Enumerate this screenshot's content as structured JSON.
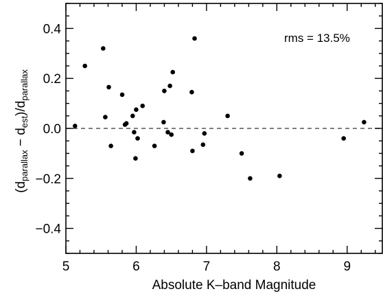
{
  "chart_data": {
    "type": "scatter",
    "title": "",
    "xlabel": "Absolute K–band Magnitude",
    "ylabel": {
      "open": "(d",
      "sub1": "parallax",
      "mid": " − d",
      "sub2": "est",
      "close": ")/d",
      "sub3": "parallax"
    },
    "xlim": [
      5,
      9.5
    ],
    "ylim": [
      -0.5,
      0.5
    ],
    "xticks": [
      5,
      6,
      7,
      8,
      9
    ],
    "xtick_labels": [
      "5",
      "6",
      "7",
      "8",
      "9"
    ],
    "yticks": [
      -0.4,
      -0.2,
      0.0,
      0.2,
      0.4
    ],
    "ytick_labels": [
      "−0.4",
      "−0.2",
      "0.0",
      "0.2",
      "0.4"
    ],
    "x_minor_step": 0.2,
    "y_minor_step": 0.05,
    "reference_line": {
      "y": 0.0,
      "style": "dashed"
    },
    "annotation": "rms = 13.5%",
    "grid": false,
    "points": [
      {
        "x": 5.13,
        "y": 0.01
      },
      {
        "x": 5.27,
        "y": 0.25
      },
      {
        "x": 5.53,
        "y": 0.32
      },
      {
        "x": 5.56,
        "y": 0.045
      },
      {
        "x": 5.61,
        "y": 0.165
      },
      {
        "x": 5.64,
        "y": -0.07
      },
      {
        "x": 5.8,
        "y": 0.135
      },
      {
        "x": 5.84,
        "y": 0.015
      },
      {
        "x": 5.86,
        "y": 0.02
      },
      {
        "x": 5.95,
        "y": 0.05
      },
      {
        "x": 5.97,
        "y": -0.015
      },
      {
        "x": 6.0,
        "y": 0.075
      },
      {
        "x": 5.99,
        "y": -0.12
      },
      {
        "x": 6.02,
        "y": -0.04
      },
      {
        "x": 6.09,
        "y": 0.09
      },
      {
        "x": 6.26,
        "y": -0.07
      },
      {
        "x": 6.39,
        "y": 0.025
      },
      {
        "x": 6.4,
        "y": 0.15
      },
      {
        "x": 6.45,
        "y": -0.015
      },
      {
        "x": 6.48,
        "y": 0.17
      },
      {
        "x": 6.5,
        "y": -0.025
      },
      {
        "x": 6.52,
        "y": 0.225
      },
      {
        "x": 6.79,
        "y": 0.145
      },
      {
        "x": 6.8,
        "y": -0.09
      },
      {
        "x": 6.83,
        "y": 0.36
      },
      {
        "x": 6.95,
        "y": -0.065
      },
      {
        "x": 6.97,
        "y": -0.02
      },
      {
        "x": 7.3,
        "y": 0.05
      },
      {
        "x": 7.5,
        "y": -0.1
      },
      {
        "x": 7.62,
        "y": -0.2
      },
      {
        "x": 8.04,
        "y": -0.19
      },
      {
        "x": 8.95,
        "y": -0.04
      },
      {
        "x": 9.24,
        "y": 0.025
      }
    ]
  }
}
